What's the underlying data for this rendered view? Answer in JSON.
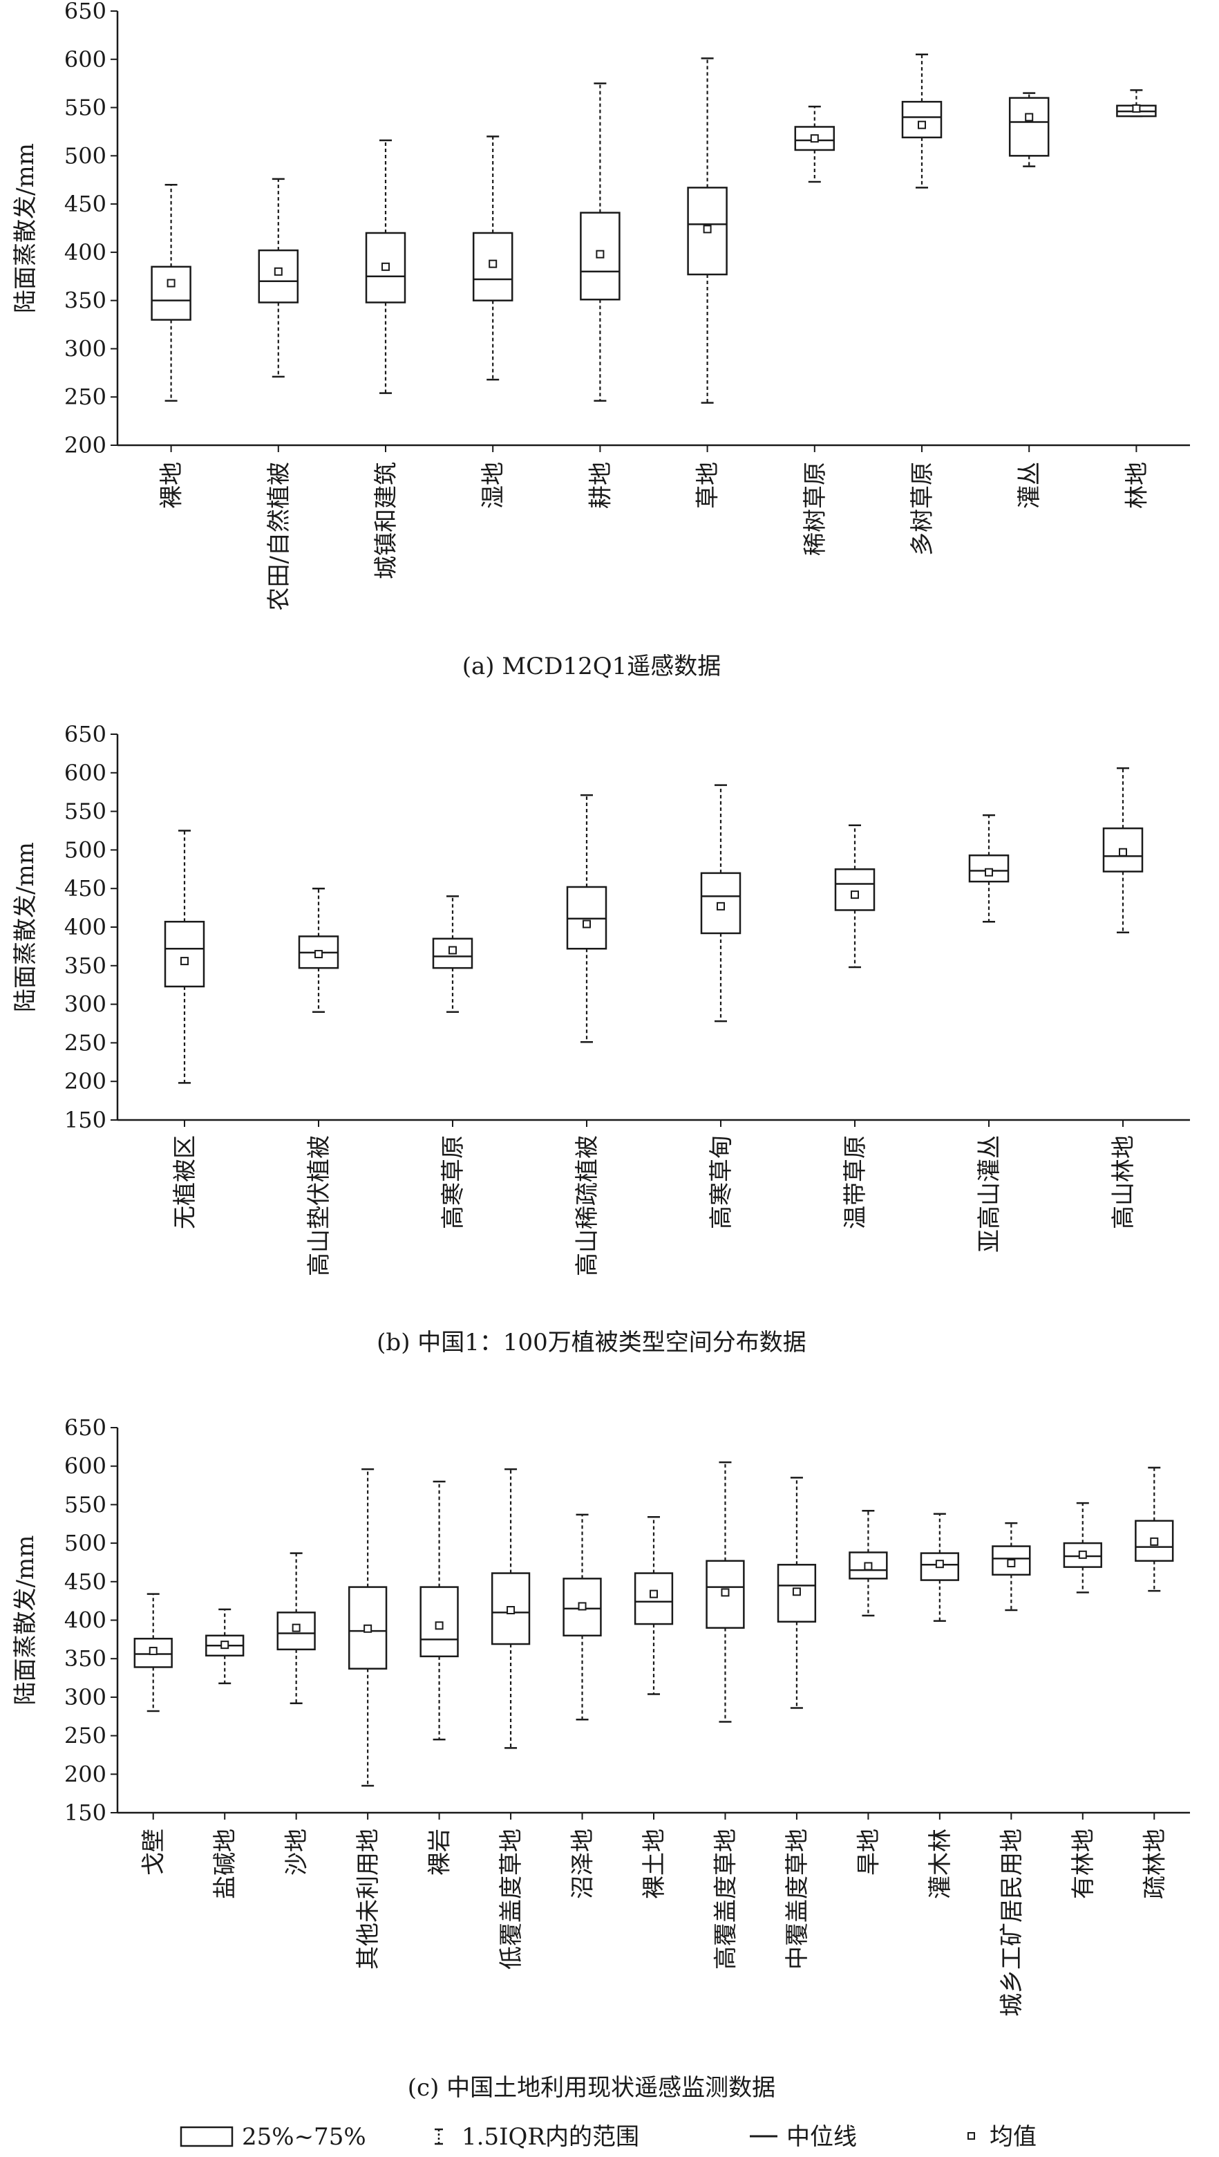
{
  "chart_data": [
    {
      "type": "box",
      "caption": "(a) MCD12Q1遥感数据",
      "ylabel": "陆面蒸散发/mm",
      "ylim": [
        200,
        650
      ],
      "yticks": [
        200,
        250,
        300,
        350,
        400,
        450,
        500,
        550,
        600,
        650
      ],
      "categories": [
        "裸地",
        "农田/自然植被",
        "城镇和建筑",
        "湿地",
        "耕地",
        "草地",
        "稀树草原",
        "多树草原",
        "灌丛",
        "林地"
      ],
      "boxes": [
        {
          "min": 246,
          "q1": 330,
          "median": 350,
          "q3": 385,
          "max": 470,
          "mean": 368
        },
        {
          "min": 271,
          "q1": 348,
          "median": 370,
          "q3": 402,
          "max": 476,
          "mean": 380
        },
        {
          "min": 254,
          "q1": 348,
          "median": 375,
          "q3": 420,
          "max": 516,
          "mean": 385
        },
        {
          "min": 268,
          "q1": 350,
          "median": 372,
          "q3": 420,
          "max": 520,
          "mean": 388
        },
        {
          "min": 246,
          "q1": 351,
          "median": 380,
          "q3": 441,
          "max": 575,
          "mean": 398
        },
        {
          "min": 244,
          "q1": 377,
          "median": 429,
          "q3": 467,
          "max": 601,
          "mean": 424
        },
        {
          "min": 473,
          "q1": 506,
          "median": 516,
          "q3": 530,
          "max": 551,
          "mean": 518
        },
        {
          "min": 467,
          "q1": 519,
          "median": 540,
          "q3": 556,
          "max": 605,
          "mean": 532
        },
        {
          "min": 489,
          "q1": 500,
          "median": 535,
          "q3": 560,
          "max": 565,
          "mean": 540
        },
        {
          "min": 541,
          "q1": 541,
          "median": 546,
          "q3": 552,
          "max": 568,
          "mean": 549
        }
      ]
    },
    {
      "type": "box",
      "caption": "(b) 中国1：100万植被类型空间分布数据",
      "ylabel": "陆面蒸散发/mm",
      "ylim": [
        150,
        650
      ],
      "yticks": [
        150,
        200,
        250,
        300,
        350,
        400,
        450,
        500,
        550,
        600,
        650
      ],
      "categories": [
        "无植被区",
        "高山垫伏植被",
        "高寒草原",
        "高山稀疏植被",
        "高寒草甸",
        "温带草原",
        "亚高山灌丛",
        "高山林地"
      ],
      "boxes": [
        {
          "min": 198,
          "q1": 323,
          "median": 372,
          "q3": 407,
          "max": 525,
          "mean": 356
        },
        {
          "min": 290,
          "q1": 347,
          "median": 367,
          "q3": 388,
          "max": 450,
          "mean": 365
        },
        {
          "min": 290,
          "q1": 347,
          "median": 362,
          "q3": 385,
          "max": 440,
          "mean": 370
        },
        {
          "min": 251,
          "q1": 372,
          "median": 411,
          "q3": 452,
          "max": 571,
          "mean": 404
        },
        {
          "min": 278,
          "q1": 392,
          "median": 440,
          "q3": 470,
          "max": 584,
          "mean": 427
        },
        {
          "min": 348,
          "q1": 422,
          "median": 456,
          "q3": 475,
          "max": 532,
          "mean": 442
        },
        {
          "min": 407,
          "q1": 459,
          "median": 473,
          "q3": 493,
          "max": 545,
          "mean": 471
        },
        {
          "min": 393,
          "q1": 472,
          "median": 492,
          "q3": 528,
          "max": 606,
          "mean": 497
        }
      ]
    },
    {
      "type": "box",
      "caption": "(c) 中国土地利用现状遥感监测数据",
      "ylabel": "陆面蒸散发/mm",
      "ylim": [
        150,
        650
      ],
      "yticks": [
        150,
        200,
        250,
        300,
        350,
        400,
        450,
        500,
        550,
        600,
        650
      ],
      "categories": [
        "戈壁",
        "盐碱地",
        "沙地",
        "其他未利用地",
        "裸岩",
        "低覆盖度草地",
        "沼泽地",
        "裸土地",
        "高覆盖度草地",
        "中覆盖度草地",
        "旱地",
        "灌木林",
        "城乡工矿居民用地",
        "有林地",
        "疏林地"
      ],
      "boxes": [
        {
          "min": 282,
          "q1": 339,
          "median": 356,
          "q3": 376,
          "max": 434,
          "mean": 360
        },
        {
          "min": 318,
          "q1": 354,
          "median": 367,
          "q3": 380,
          "max": 414,
          "mean": 368
        },
        {
          "min": 292,
          "q1": 362,
          "median": 383,
          "q3": 410,
          "max": 487,
          "mean": 390
        },
        {
          "min": 185,
          "q1": 337,
          "median": 386,
          "q3": 443,
          "max": 596,
          "mean": 389
        },
        {
          "min": 245,
          "q1": 353,
          "median": 375,
          "q3": 443,
          "max": 580,
          "mean": 393
        },
        {
          "min": 234,
          "q1": 369,
          "median": 410,
          "q3": 461,
          "max": 596,
          "mean": 413
        },
        {
          "min": 271,
          "q1": 380,
          "median": 415,
          "q3": 454,
          "max": 537,
          "mean": 418
        },
        {
          "min": 304,
          "q1": 395,
          "median": 424,
          "q3": 461,
          "max": 534,
          "mean": 434
        },
        {
          "min": 268,
          "q1": 390,
          "median": 443,
          "q3": 477,
          "max": 605,
          "mean": 436
        },
        {
          "min": 286,
          "q1": 398,
          "median": 445,
          "q3": 472,
          "max": 585,
          "mean": 437
        },
        {
          "min": 406,
          "q1": 454,
          "median": 465,
          "q3": 488,
          "max": 542,
          "mean": 470
        },
        {
          "min": 399,
          "q1": 452,
          "median": 472,
          "q3": 487,
          "max": 538,
          "mean": 473
        },
        {
          "min": 413,
          "q1": 459,
          "median": 480,
          "q3": 496,
          "max": 526,
          "mean": 474
        },
        {
          "min": 436,
          "q1": 469,
          "median": 483,
          "q3": 500,
          "max": 552,
          "mean": 485
        },
        {
          "min": 438,
          "q1": 477,
          "median": 495,
          "q3": 529,
          "max": 598,
          "mean": 502
        }
      ]
    }
  ],
  "legend": {
    "box": "25%~75%",
    "whisker": "1.5IQR内的范围",
    "median": "中位线",
    "mean": "均值"
  }
}
